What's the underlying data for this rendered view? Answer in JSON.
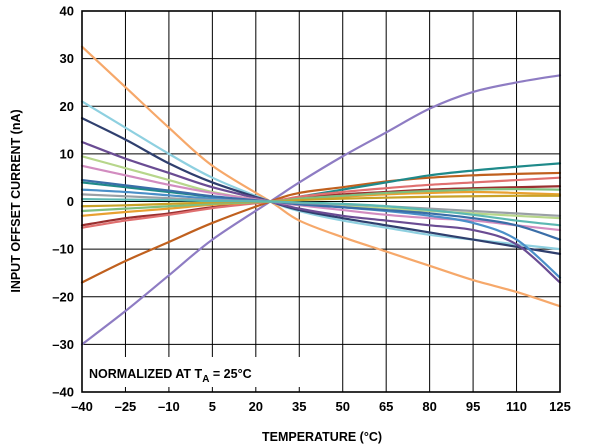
{
  "chart_data": {
    "type": "line",
    "title": "",
    "xlabel": "TEMPERATURE (°C)",
    "ylabel": "INPUT OFFSET CURRENT (nA)",
    "annotation": {
      "prefix": "NORMALIZED AT T",
      "subscript": "A",
      "suffix": " = 25°C"
    },
    "xlim": [
      -40,
      125
    ],
    "ylim": [
      -40,
      40
    ],
    "xticks": [
      -40,
      -25,
      -10,
      5,
      20,
      35,
      50,
      65,
      80,
      95,
      110,
      125
    ],
    "yticks": [
      -40,
      -30,
      -20,
      -10,
      0,
      10,
      20,
      30,
      40
    ],
    "grid": true,
    "legend": "none",
    "x": [
      -40,
      -25,
      -10,
      5,
      25,
      35,
      50,
      65,
      80,
      95,
      110,
      125
    ],
    "series": [
      {
        "color": "#8e7cc3",
        "values": [
          -30,
          -23,
          -15.5,
          -8,
          0,
          4,
          9.5,
          14.5,
          19.5,
          23,
          25,
          26.5
        ]
      },
      {
        "color": "#f6a86a",
        "values": [
          32.5,
          24,
          15.5,
          7.5,
          0,
          -4,
          -7.5,
          -10.5,
          -13.5,
          -16.5,
          -19,
          -22
        ]
      },
      {
        "color": "#c0601e",
        "values": [
          -17,
          -12.5,
          -8.5,
          -4.5,
          0,
          1.8,
          3,
          4.2,
          5,
          5.5,
          5.8,
          6
        ]
      },
      {
        "color": "#8ed0e0",
        "values": [
          21,
          15.5,
          10,
          5,
          0,
          -2,
          -4,
          -5.5,
          -7,
          -8,
          -9,
          -10
        ]
      },
      {
        "color": "#2f3f6e",
        "values": [
          17.5,
          13,
          8,
          4,
          0,
          -1.8,
          -3.5,
          -5,
          -6.5,
          -8,
          -9.5,
          -11
        ]
      },
      {
        "color": "#6a4c93",
        "values": [
          12.5,
          9,
          6,
          3,
          0,
          -1.5,
          -3,
          -4,
          -5,
          -6,
          -9,
          -17
        ]
      },
      {
        "color": "#1f8a8a",
        "values": [
          4,
          3,
          2,
          1,
          0,
          1,
          2.5,
          4,
          5.5,
          6.5,
          7.3,
          8
        ]
      },
      {
        "color": "#b7d68b",
        "values": [
          9.5,
          7,
          4.5,
          2,
          0,
          -0.5,
          -1,
          -1.5,
          -2,
          -2.5,
          -3,
          -3.5
        ]
      },
      {
        "color": "#d28cc0",
        "values": [
          7.5,
          5.5,
          3.5,
          1.8,
          0,
          -0.8,
          -1.8,
          -2.8,
          -3.5,
          -4,
          -5,
          -6
        ]
      },
      {
        "color": "#9a2f2f",
        "values": [
          -5,
          -3.5,
          -2.5,
          -1.2,
          0,
          0.8,
          1.5,
          2,
          2.5,
          2.8,
          3,
          3.2
        ]
      },
      {
        "color": "#e07070",
        "values": [
          -5.5,
          -4,
          -2.8,
          -1.4,
          0,
          1,
          2,
          2.8,
          3.5,
          4,
          4.5,
          5
        ]
      },
      {
        "color": "#4a8fc8",
        "values": [
          2.5,
          2,
          1.3,
          0.6,
          0,
          -0.5,
          -1.2,
          -2,
          -3,
          -4.5,
          -8,
          -16
        ]
      },
      {
        "color": "#e8a030",
        "values": [
          -3,
          -2.2,
          -1.5,
          -0.7,
          0,
          0.5,
          1,
          1.5,
          1.8,
          2,
          1.8,
          1.5
        ]
      },
      {
        "color": "#3a6ea8",
        "values": [
          4.5,
          3.4,
          2.3,
          1.1,
          0,
          -0.6,
          -1.2,
          -1.8,
          -2.5,
          -3.5,
          -5,
          -8
        ]
      },
      {
        "color": "#7fbf7f",
        "values": [
          -2,
          -1.5,
          -1,
          -0.5,
          0,
          0.6,
          1.2,
          1.8,
          2.2,
          2.5,
          2.6,
          2.5
        ]
      },
      {
        "color": "#9aa0a6",
        "values": [
          1.5,
          1.1,
          0.7,
          0.3,
          0,
          -0.3,
          -0.6,
          -1,
          -1.5,
          -2,
          -2.5,
          -3
        ]
      },
      {
        "color": "#c9a227",
        "values": [
          -1,
          -0.8,
          -0.5,
          -0.2,
          0,
          0.3,
          0.6,
          0.8,
          1,
          1.1,
          1.2,
          1.2
        ]
      },
      {
        "color": "#5cb8b2",
        "values": [
          0.5,
          0.4,
          0.3,
          0.1,
          0,
          -0.2,
          -0.5,
          -1,
          -1.8,
          -2.8,
          -4,
          -5
        ]
      }
    ]
  }
}
